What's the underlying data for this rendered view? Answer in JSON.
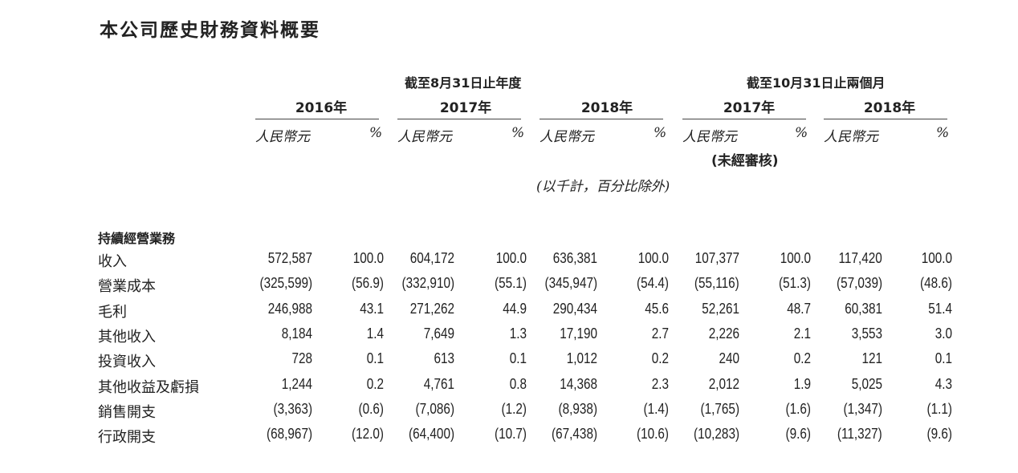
{
  "title": "本公司歷史財務資料概要",
  "header": {
    "period_year_end": "截至8月31日止年度",
    "period_two_months": "截至10月31日止兩個月",
    "years": [
      "2016年",
      "2017年",
      "2018年",
      "2017年",
      "2018年"
    ],
    "unit_label": "人民幣元",
    "pct_label": "%",
    "unaudited": "(未經審核)",
    "note": "(以千計，百分比除外)"
  },
  "section_title": "持續經營業務",
  "rows": [
    {
      "label": "收入",
      "values": [
        "572,587",
        "100.0",
        "604,172",
        "100.0",
        "636,381",
        "100.0",
        "107,377",
        "100.0",
        "117,420",
        "100.0"
      ]
    },
    {
      "label": "營業成本",
      "values": [
        "(325,599)",
        "(56.9)",
        "(332,910)",
        "(55.1)",
        "(345,947)",
        "(54.4)",
        "(55,116)",
        "(51.3)",
        "(57,039)",
        "(48.6)"
      ]
    },
    {
      "label": "毛利",
      "values": [
        "246,988",
        "43.1",
        "271,262",
        "44.9",
        "290,434",
        "45.6",
        "52,261",
        "48.7",
        "60,381",
        "51.4"
      ]
    },
    {
      "label": "其他收入",
      "values": [
        "8,184",
        "1.4",
        "7,649",
        "1.3",
        "17,190",
        "2.7",
        "2,226",
        "2.1",
        "3,553",
        "3.0"
      ]
    },
    {
      "label": "投資收入",
      "values": [
        "728",
        "0.1",
        "613",
        "0.1",
        "1,012",
        "0.2",
        "240",
        "0.2",
        "121",
        "0.1"
      ]
    },
    {
      "label": "其他收益及虧損",
      "values": [
        "1,244",
        "0.2",
        "4,761",
        "0.8",
        "14,368",
        "2.3",
        "2,012",
        "1.9",
        "5,025",
        "4.3"
      ]
    },
    {
      "label": "銷售開支",
      "values": [
        "(3,363)",
        "(0.6)",
        "(7,086)",
        "(1.2)",
        "(8,938)",
        "(1.4)",
        "(1,765)",
        "(1.6)",
        "(1,347)",
        "(1.1)"
      ]
    },
    {
      "label": "行政開支",
      "values": [
        "(68,967)",
        "(12.0)",
        "(64,400)",
        "(10.7)",
        "(67,438)",
        "(10.6)",
        "(10,283)",
        "(9.6)",
        "(11,327)",
        "(9.6)"
      ]
    }
  ]
}
